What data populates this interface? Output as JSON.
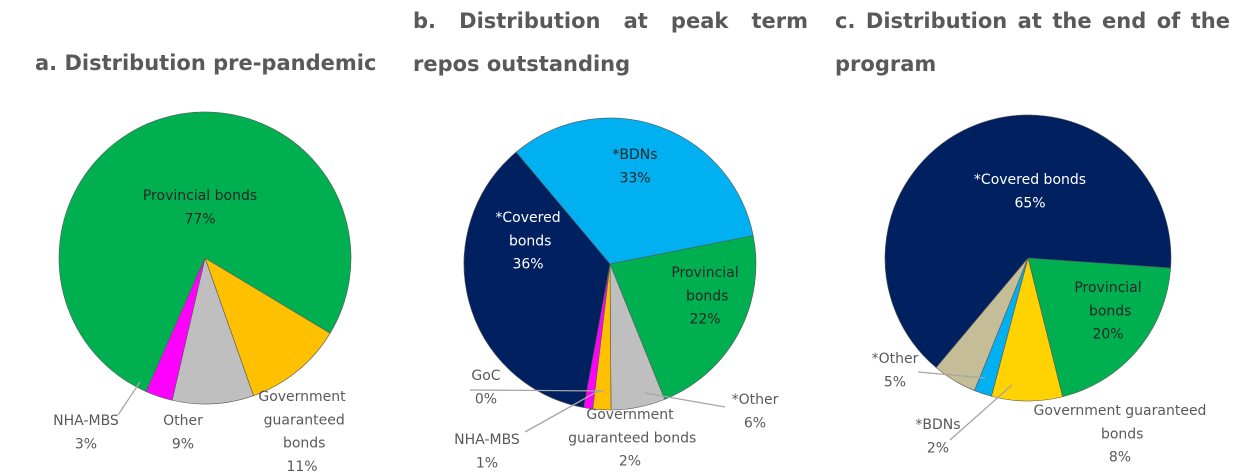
{
  "chart_data": [
    {
      "type": "pie",
      "title": "a. Distribution pre-pandemic",
      "categories": [
        "Government guaranteed bonds",
        "Other",
        "NHA-MBS",
        "Provincial bonds"
      ],
      "values": [
        11,
        9,
        3,
        77
      ],
      "value_labels": [
        "11%",
        "9%",
        "3%",
        "77%"
      ],
      "colors": [
        "#ffc000",
        "#bfbfbf",
        "#ff00ff",
        "#00b050"
      ]
    },
    {
      "type": "pie",
      "title": "b. Distribution at peak term repos outstanding",
      "categories": [
        "*BDNs",
        "Provincial bonds",
        "*Other",
        "Government guaranteed bonds",
        "NHA-MBS",
        "GoC",
        "*Covered bonds"
      ],
      "values": [
        33,
        22,
        6,
        2,
        1,
        0,
        36
      ],
      "value_labels": [
        "33%",
        "22%",
        "6%",
        "2%",
        "1%",
        "0%",
        "36%"
      ],
      "colors": [
        "#00b0f0",
        "#00b050",
        "#bfbfbf",
        "#ffc000",
        "#ff00ff",
        "#7f7f7f",
        "#002060"
      ]
    },
    {
      "type": "pie",
      "title": "c. Distribution at the end of the program",
      "categories": [
        "Provincial bonds",
        "Government guaranteed bonds",
        "*BDNs",
        "*Other",
        "*Covered bonds"
      ],
      "values": [
        20,
        8,
        2,
        5,
        65
      ],
      "value_labels": [
        "20%",
        "8%",
        "2%",
        "5%",
        "65%"
      ],
      "colors": [
        "#00b050",
        "#ffd200",
        "#00b0f0",
        "#c4bd97",
        "#002060"
      ]
    }
  ]
}
